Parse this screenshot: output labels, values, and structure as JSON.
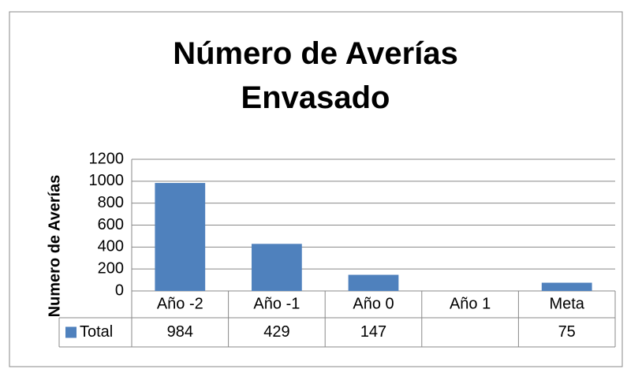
{
  "chart_data": {
    "type": "bar",
    "title": "Número de Averías Envasado",
    "y_label": "Numero de Averías",
    "categories": [
      "Año -2",
      "Año -1",
      "Año 0",
      "Año 1",
      "Meta"
    ],
    "series": [
      {
        "name": "Total",
        "color": "#4f81bd",
        "values": [
          984,
          429,
          147,
          null,
          75
        ]
      }
    ],
    "ylim": [
      0,
      1200
    ],
    "yticks": [
      0,
      200,
      400,
      600,
      800,
      1000,
      1200
    ],
    "grid": true,
    "data_table": true
  }
}
